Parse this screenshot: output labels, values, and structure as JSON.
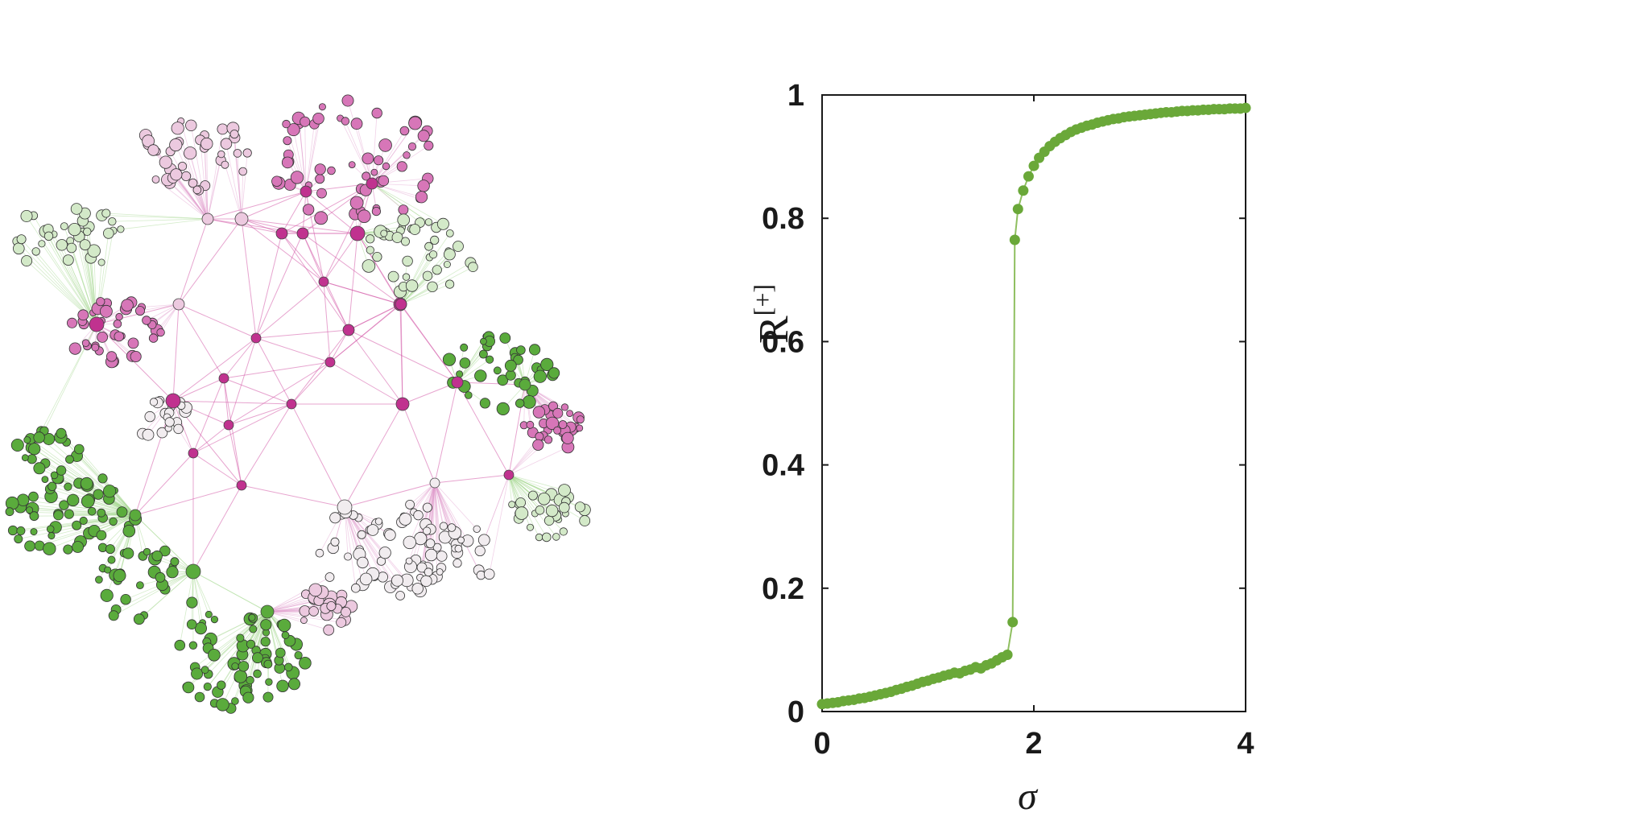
{
  "colors": {
    "series": "#6aa839",
    "series_line": "#8fbf60",
    "axis": "#1a1a1a",
    "network_magenta_dark": "#c0328f",
    "network_magenta_mid": "#d776b8",
    "network_pink_light": "#ecc9df",
    "network_neutral": "#f1ecef",
    "network_green_light": "#d3e9c8",
    "network_green_dark": "#5aab3c"
  },
  "network": {
    "description_icon": "network-graph-icon"
  },
  "chart_data": {
    "type": "scatter",
    "title": "",
    "xlabel": "σ",
    "ylabel_main": "R",
    "ylabel_superscript": "[+]",
    "xlim": [
      0,
      4
    ],
    "ylim": [
      0,
      1
    ],
    "x_ticks": [
      0,
      2,
      4
    ],
    "x_tick_labels": [
      "0",
      "2",
      "4"
    ],
    "y_ticks": [
      0,
      0.2,
      0.4,
      0.6,
      0.8,
      1
    ],
    "y_tick_labels": [
      "0",
      "0.2",
      "0.4",
      "0.6",
      "0.8",
      "1"
    ],
    "grid": false,
    "series": [
      {
        "x": [
          0.0,
          0.05,
          0.1,
          0.15,
          0.2,
          0.25,
          0.3,
          0.35,
          0.4,
          0.45,
          0.5,
          0.55,
          0.6,
          0.65,
          0.7,
          0.75,
          0.8,
          0.85,
          0.9,
          0.95,
          1.0,
          1.05,
          1.1,
          1.15,
          1.2,
          1.25,
          1.3,
          1.35,
          1.4,
          1.45,
          1.5,
          1.55,
          1.6,
          1.65,
          1.7,
          1.75,
          1.8,
          1.82,
          1.85,
          1.9,
          1.95,
          2.0,
          2.05,
          2.1,
          2.15,
          2.2,
          2.25,
          2.3,
          2.35,
          2.4,
          2.45,
          2.5,
          2.55,
          2.6,
          2.65,
          2.7,
          2.75,
          2.8,
          2.85,
          2.9,
          2.95,
          3.0,
          3.05,
          3.1,
          3.15,
          3.2,
          3.25,
          3.3,
          3.35,
          3.4,
          3.45,
          3.5,
          3.55,
          3.6,
          3.65,
          3.7,
          3.75,
          3.8,
          3.85,
          3.9,
          3.95,
          4.0
        ],
        "y": [
          0.012,
          0.013,
          0.014,
          0.015,
          0.017,
          0.018,
          0.019,
          0.021,
          0.022,
          0.024,
          0.026,
          0.028,
          0.03,
          0.032,
          0.035,
          0.037,
          0.04,
          0.042,
          0.045,
          0.048,
          0.05,
          0.053,
          0.055,
          0.058,
          0.06,
          0.063,
          0.062,
          0.066,
          0.068,
          0.072,
          0.07,
          0.075,
          0.078,
          0.083,
          0.088,
          0.092,
          0.145,
          0.765,
          0.815,
          0.845,
          0.868,
          0.885,
          0.898,
          0.908,
          0.917,
          0.924,
          0.93,
          0.935,
          0.94,
          0.944,
          0.947,
          0.95,
          0.952,
          0.955,
          0.957,
          0.959,
          0.961,
          0.962,
          0.964,
          0.965,
          0.966,
          0.967,
          0.968,
          0.969,
          0.97,
          0.971,
          0.972,
          0.972,
          0.973,
          0.974,
          0.974,
          0.975,
          0.975,
          0.976,
          0.976,
          0.977,
          0.977,
          0.977,
          0.978,
          0.978,
          0.978,
          0.979
        ]
      }
    ]
  }
}
